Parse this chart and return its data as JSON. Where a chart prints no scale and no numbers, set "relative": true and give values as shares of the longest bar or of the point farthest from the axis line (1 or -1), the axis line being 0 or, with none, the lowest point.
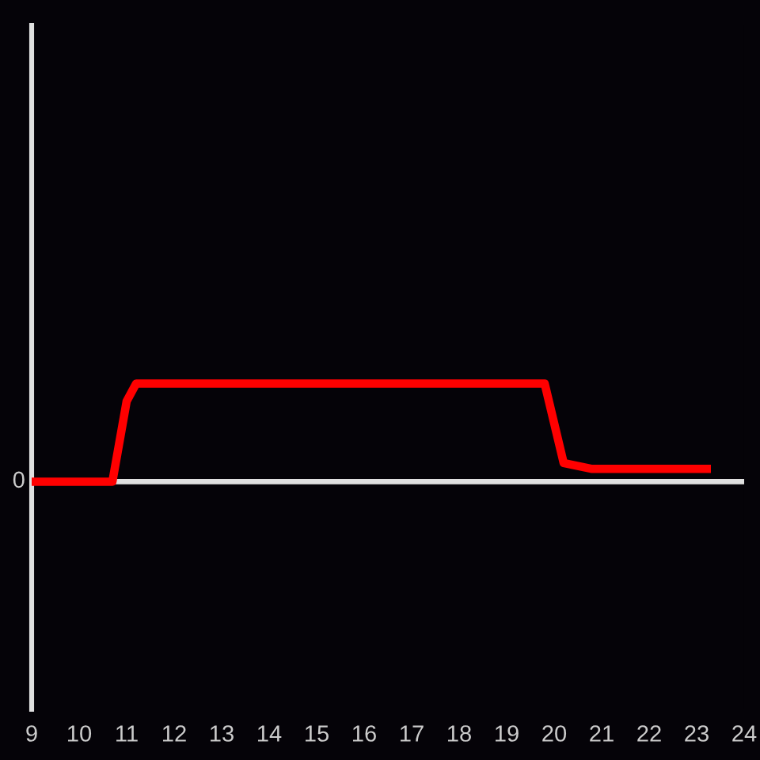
{
  "chart_data": {
    "type": "line",
    "relative": true,
    "x": [
      9,
      10.7,
      11.0,
      11.2,
      19.8,
      20.2,
      20.8,
      23.3
    ],
    "values": [
      0,
      0,
      0.82,
      1,
      1,
      0.19,
      0.13,
      0.13
    ],
    "color": "#ff0000",
    "line_style": "solid",
    "xlim": [
      9,
      24
    ],
    "xticks": [
      9,
      10,
      11,
      12,
      13,
      14,
      15,
      16,
      17,
      18,
      19,
      20,
      21,
      22,
      23,
      24
    ],
    "grid": false,
    "ref_lines": [
      {
        "axis": "y",
        "value": 0,
        "label": "0",
        "color": "#e0e0e0"
      }
    ]
  }
}
